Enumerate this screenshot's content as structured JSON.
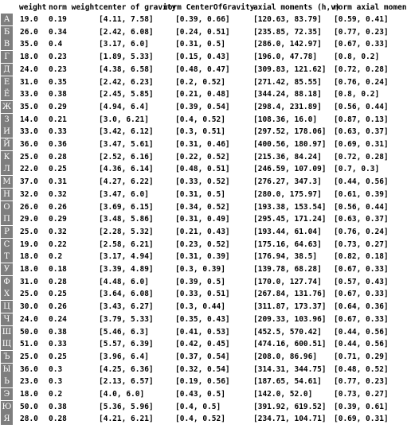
{
  "headers": [
    "weight",
    "norm weight",
    "center of gravity",
    "norm CenterOfGravity",
    "axial moments (h,v)",
    "norm axial momen"
  ],
  "rows": [
    {
      "glyph": "А",
      "weight": "19.0",
      "norm_weight": "0.19",
      "center_of_gravity": "[4.11, 7.58]",
      "norm_center": "[0.39, 0.66]",
      "axial_moments": "[120.63, 83.79]",
      "norm_axial": "[0.59, 0.41]"
    },
    {
      "glyph": "Б",
      "weight": "26.0",
      "norm_weight": "0.34",
      "center_of_gravity": "[2.42, 6.08]",
      "norm_center": "[0.24, 0.51]",
      "axial_moments": "[235.85, 72.35]",
      "norm_axial": "[0.77, 0.23]"
    },
    {
      "glyph": "В",
      "weight": "35.0",
      "norm_weight": "0.4",
      "center_of_gravity": "[3.17, 6.0]",
      "norm_center": "[0.31, 0.5]",
      "axial_moments": "[286.0, 142.97]",
      "norm_axial": "[0.67, 0.33]"
    },
    {
      "glyph": "Г",
      "weight": "18.0",
      "norm_weight": "0.23",
      "center_of_gravity": "[1.89, 5.33]",
      "norm_center": "[0.15, 0.43]",
      "axial_moments": "[196.0, 47.78]",
      "norm_axial": "[0.8, 0.2]"
    },
    {
      "glyph": "Д",
      "weight": "24.0",
      "norm_weight": "0.23",
      "center_of_gravity": "[4.38, 6.58]",
      "norm_center": "[0.48, 0.47]",
      "axial_moments": "[309.83, 121.62]",
      "norm_axial": "[0.72, 0.28]"
    },
    {
      "glyph": "Е",
      "weight": "31.0",
      "norm_weight": "0.35",
      "center_of_gravity": "[2.42, 6.23]",
      "norm_center": "[0.2, 0.52]",
      "axial_moments": "[271.42, 85.55]",
      "norm_axial": "[0.76, 0.24]"
    },
    {
      "glyph": "Ё",
      "weight": "33.0",
      "norm_weight": "0.38",
      "center_of_gravity": "[2.45, 5.85]",
      "norm_center": "[0.21, 0.48]",
      "axial_moments": "[344.24, 88.18]",
      "norm_axial": "[0.8, 0.2]"
    },
    {
      "glyph": "Ж",
      "weight": "35.0",
      "norm_weight": "0.29",
      "center_of_gravity": "[4.94, 6.4]",
      "norm_center": "[0.39, 0.54]",
      "axial_moments": "[298.4, 231.89]",
      "norm_axial": "[0.56, 0.44]"
    },
    {
      "glyph": "З",
      "weight": "14.0",
      "norm_weight": "0.21",
      "center_of_gravity": "[3.0, 6.21]",
      "norm_center": "[0.4, 0.52]",
      "axial_moments": "[108.36, 16.0]",
      "norm_axial": "[0.87, 0.13]"
    },
    {
      "glyph": "И",
      "weight": "33.0",
      "norm_weight": "0.33",
      "center_of_gravity": "[3.42, 6.12]",
      "norm_center": "[0.3, 0.51]",
      "axial_moments": "[297.52, 178.06]",
      "norm_axial": "[0.63, 0.37]"
    },
    {
      "glyph": "Й",
      "weight": "36.0",
      "norm_weight": "0.36",
      "center_of_gravity": "[3.47, 5.61]",
      "norm_center": "[0.31, 0.46]",
      "axial_moments": "[400.56, 180.97]",
      "norm_axial": "[0.69, 0.31]"
    },
    {
      "glyph": "К",
      "weight": "25.0",
      "norm_weight": "0.28",
      "center_of_gravity": "[2.52, 6.16]",
      "norm_center": "[0.22, 0.52]",
      "axial_moments": "[215.36, 84.24]",
      "norm_axial": "[0.72, 0.28]"
    },
    {
      "glyph": "Л",
      "weight": "22.0",
      "norm_weight": "0.25",
      "center_of_gravity": "[4.36, 6.14]",
      "norm_center": "[0.48, 0.51]",
      "axial_moments": "[246.59, 107.09]",
      "norm_axial": "[0.7, 0.3]"
    },
    {
      "glyph": "М",
      "weight": "37.0",
      "norm_weight": "0.31",
      "center_of_gravity": "[4.27, 6.22]",
      "norm_center": "[0.33, 0.52]",
      "axial_moments": "[276.27, 347.3]",
      "norm_axial": "[0.44, 0.56]"
    },
    {
      "glyph": "Н",
      "weight": "32.0",
      "norm_weight": "0.32",
      "center_of_gravity": "[3.47, 6.0]",
      "norm_center": "[0.31, 0.5]",
      "axial_moments": "[280.0, 175.97]",
      "norm_axial": "[0.61, 0.39]"
    },
    {
      "glyph": "О",
      "weight": "26.0",
      "norm_weight": "0.26",
      "center_of_gravity": "[3.69, 6.15]",
      "norm_center": "[0.34, 0.52]",
      "axial_moments": "[193.38, 153.54]",
      "norm_axial": "[0.56, 0.44]"
    },
    {
      "glyph": "П",
      "weight": "29.0",
      "norm_weight": "0.29",
      "center_of_gravity": "[3.48, 5.86]",
      "norm_center": "[0.31, 0.49]",
      "axial_moments": "[295.45, 171.24]",
      "norm_axial": "[0.63, 0.37]"
    },
    {
      "glyph": "Р",
      "weight": "25.0",
      "norm_weight": "0.32",
      "center_of_gravity": "[2.28, 5.32]",
      "norm_center": "[0.21, 0.43]",
      "axial_moments": "[193.44, 61.04]",
      "norm_axial": "[0.76, 0.24]"
    },
    {
      "glyph": "С",
      "weight": "19.0",
      "norm_weight": "0.22",
      "center_of_gravity": "[2.58, 6.21]",
      "norm_center": "[0.23, 0.52]",
      "axial_moments": "[175.16, 64.63]",
      "norm_axial": "[0.73, 0.27]"
    },
    {
      "glyph": "Т",
      "weight": "18.0",
      "norm_weight": "0.2",
      "center_of_gravity": "[3.17, 4.94]",
      "norm_center": "[0.31, 0.39]",
      "axial_moments": "[176.94, 38.5]",
      "norm_axial": "[0.82, 0.18]"
    },
    {
      "glyph": "У",
      "weight": "18.0",
      "norm_weight": "0.18",
      "center_of_gravity": "[3.39, 4.89]",
      "norm_center": "[0.3, 0.39]",
      "axial_moments": "[139.78, 68.28]",
      "norm_axial": "[0.67, 0.33]"
    },
    {
      "glyph": "Ф",
      "weight": "31.0",
      "norm_weight": "0.28",
      "center_of_gravity": "[4.48, 6.0]",
      "norm_center": "[0.39, 0.5]",
      "axial_moments": "[170.0, 127.74]",
      "norm_axial": "[0.57, 0.43]"
    },
    {
      "glyph": "Х",
      "weight": "25.0",
      "norm_weight": "0.25",
      "center_of_gravity": "[3.64, 6.08]",
      "norm_center": "[0.33, 0.51]",
      "axial_moments": "[267.84, 131.76]",
      "norm_axial": "[0.67, 0.33]"
    },
    {
      "glyph": "Ц",
      "weight": "30.0",
      "norm_weight": "0.26",
      "center_of_gravity": "[3.43, 6.27]",
      "norm_center": "[0.3, 0.44]",
      "axial_moments": "[311.87, 173.37]",
      "norm_axial": "[0.64, 0.36]"
    },
    {
      "glyph": "Ч",
      "weight": "24.0",
      "norm_weight": "0.24",
      "center_of_gravity": "[3.79, 5.33]",
      "norm_center": "[0.35, 0.43]",
      "axial_moments": "[209.33, 103.96]",
      "norm_axial": "[0.67, 0.33]"
    },
    {
      "glyph": "Ш",
      "weight": "50.0",
      "norm_weight": "0.38",
      "center_of_gravity": "[5.46, 6.3]",
      "norm_center": "[0.41, 0.53]",
      "axial_moments": "[452.5, 570.42]",
      "norm_axial": "[0.44, 0.56]"
    },
    {
      "glyph": "Щ",
      "weight": "51.0",
      "norm_weight": "0.33",
      "center_of_gravity": "[5.57, 6.39]",
      "norm_center": "[0.42, 0.45]",
      "axial_moments": "[474.16, 600.51]",
      "norm_axial": "[0.44, 0.56]"
    },
    {
      "glyph": "Ъ",
      "weight": "25.0",
      "norm_weight": "0.25",
      "center_of_gravity": "[3.96, 6.4]",
      "norm_center": "[0.37, 0.54]",
      "axial_moments": "[208.0, 86.96]",
      "norm_axial": "[0.71, 0.29]"
    },
    {
      "glyph": "Ы",
      "weight": "36.0",
      "norm_weight": "0.3",
      "center_of_gravity": "[4.25, 6.36]",
      "norm_center": "[0.32, 0.54]",
      "axial_moments": "[314.31, 344.75]",
      "norm_axial": "[0.48, 0.52]"
    },
    {
      "glyph": "Ь",
      "weight": "23.0",
      "norm_weight": "0.3",
      "center_of_gravity": "[2.13, 6.57]",
      "norm_center": "[0.19, 0.56]",
      "axial_moments": "[187.65, 54.61]",
      "norm_axial": "[0.77, 0.23]"
    },
    {
      "glyph": "Э",
      "weight": "18.0",
      "norm_weight": "0.2",
      "center_of_gravity": "[4.0, 6.0]",
      "norm_center": "[0.43, 0.5]",
      "axial_moments": "[142.0, 52.0]",
      "norm_axial": "[0.73, 0.27]"
    },
    {
      "glyph": "Ю",
      "weight": "50.0",
      "norm_weight": "0.38",
      "center_of_gravity": "[5.36, 5.96]",
      "norm_center": "[0.4, 0.5]",
      "axial_moments": "[391.92, 619.52]",
      "norm_axial": "[0.39, 0.61]"
    },
    {
      "glyph": "Я",
      "weight": "28.0",
      "norm_weight": "0.28",
      "center_of_gravity": "[4.21, 6.21]",
      "norm_center": "[0.4, 0.52]",
      "axial_moments": "[234.71, 104.71]",
      "norm_axial": "[0.69, 0.31]"
    }
  ]
}
